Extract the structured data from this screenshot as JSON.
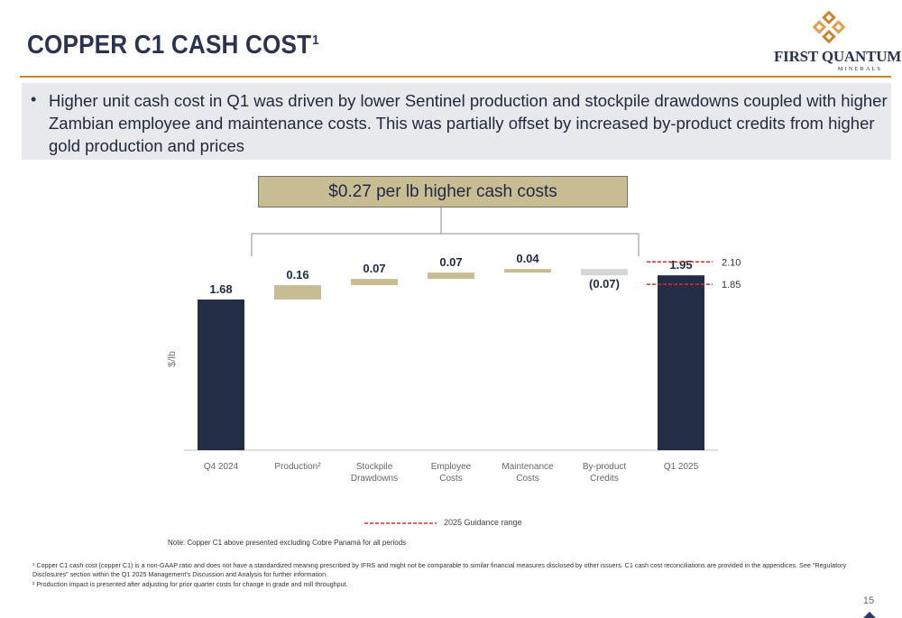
{
  "page": {
    "title": "COPPER C1 CASH COST",
    "title_sup": "1",
    "page_number": "15"
  },
  "logo": {
    "name": "FIRST QUANTUM",
    "subtitle": "MINERALS"
  },
  "bullet": {
    "text": "Higher unit cash cost in Q1 was driven by lower Sentinel production and stockpile drawdowns coupled with higher Zambian employee and maintenance costs. This was partially offset by increased by-product credits from higher gold production and prices"
  },
  "callout": {
    "text": "$0.27 per lb higher cash costs"
  },
  "chart_data": {
    "type": "bar",
    "subtype": "waterfall",
    "ylabel": "$/lb",
    "categories": [
      [
        "Q4 2024"
      ],
      [
        "Production²"
      ],
      [
        "Stockpile",
        "Drawdowns"
      ],
      [
        "Employee",
        "Costs"
      ],
      [
        "Maintenance",
        "Costs"
      ],
      [
        "By-product",
        "Credits"
      ],
      [
        "Q1 2025"
      ]
    ],
    "steps": [
      {
        "kind": "total",
        "value": 1.68,
        "label": "1.68"
      },
      {
        "kind": "delta",
        "value": 0.16,
        "label": "0.16"
      },
      {
        "kind": "delta",
        "value": 0.07,
        "label": "0.07"
      },
      {
        "kind": "delta",
        "value": 0.07,
        "label": "0.07"
      },
      {
        "kind": "delta",
        "value": 0.04,
        "label": "0.04"
      },
      {
        "kind": "delta",
        "value": -0.07,
        "label": "(0.07)"
      },
      {
        "kind": "total",
        "value": 1.95,
        "label": "1.95"
      }
    ],
    "guidance": {
      "low": 1.85,
      "high": 2.1,
      "low_label": "1.85",
      "high_label": "2.10",
      "legend": "2025 Guidance range"
    },
    "colors": {
      "total": "#232d45",
      "increase": "#c8bc93",
      "decrease": "#d6d6d6",
      "guidance": "#e0282d",
      "axis": "#bfbfbf",
      "bracket": "#8c8c8c"
    },
    "grid": false,
    "legend_position": "bottom-center"
  },
  "notes": {
    "note": "Note: Copper C1 above presented excluding Cobre Panamá for all periods",
    "footnote1": "¹ Copper C1 cash cost (copper C1) is a non-GAAP ratio and does not have a standardized meaning prescribed by IFRS and might not be comparable to similar financial measures disclosed by other issuers. C1 cash cost reconciliations are provided in the appendices. See \"Regulatory Disclosures\" section within the Q1 2025 Management's Discussion and Analysis for further information.",
    "footnote2": "² Production impact is presented after adjusting for prior quarter costs for change in grade and mill throughput."
  }
}
